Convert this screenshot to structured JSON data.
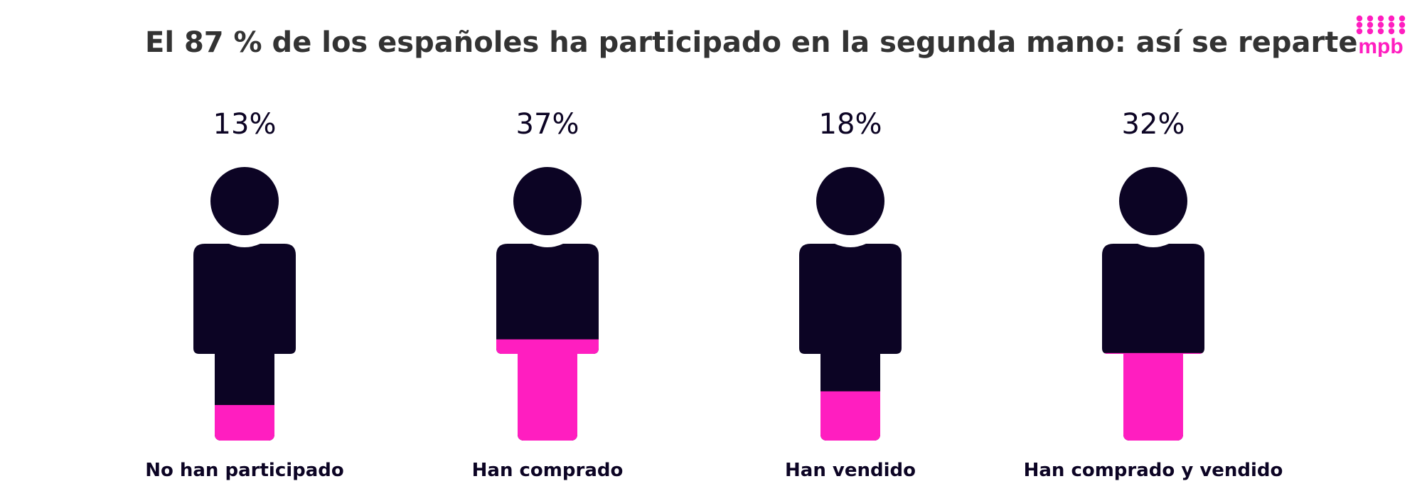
{
  "header": {
    "title": "El 87 % de los españoles ha participado en la segunda mano: así se reparte"
  },
  "logo": {
    "text": "mpb"
  },
  "colors": {
    "figure": "#0c0424",
    "accent": "#ff1ec0",
    "title": "#333333"
  },
  "chart_data": {
    "type": "pictograph",
    "title": "El 87 % de los españoles ha participado en la segunda mano: así se reparte",
    "unit": "%",
    "items": [
      {
        "label": "No han participado",
        "value": 13,
        "value_label": "13%"
      },
      {
        "label": "Han comprado",
        "value": 37,
        "value_label": "37%"
      },
      {
        "label": "Han vendido",
        "value": 18,
        "value_label": "18%"
      },
      {
        "label": "Han comprado y vendido",
        "value": 32,
        "value_label": "32%"
      }
    ]
  }
}
